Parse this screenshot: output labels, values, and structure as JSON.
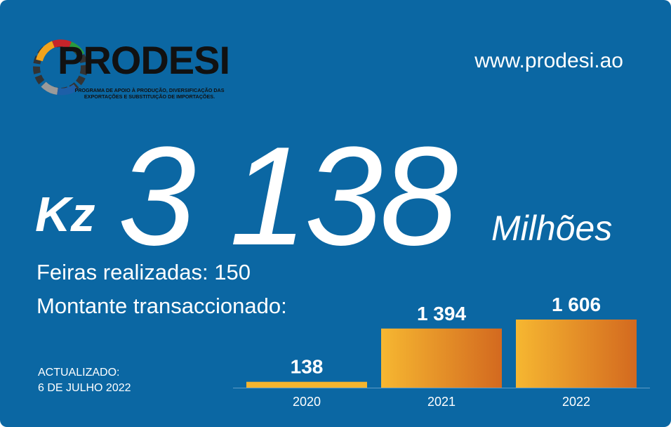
{
  "brand": {
    "name": "PRODESI",
    "subtitle_line1": "PROGRAMA DE APOIO À PRODUÇÃO, DIVERSIFICAÇÃO DAS",
    "subtitle_line2": "EXPORTAÇÕES E SUBSTITUIÇÃO DE IMPORTAÇÕES.",
    "website": "www.prodesi.ao"
  },
  "headline": {
    "currency": "Kz",
    "amount": "3 138",
    "unit": "Milhões"
  },
  "stats": {
    "fairs": "Feiras realizadas: 150",
    "amount_label": "Montante transaccionado:"
  },
  "updated": {
    "label": "ACTUALIZADO:",
    "date": "6 DE JULHO 2022"
  },
  "colors": {
    "background": "#0b67a3",
    "bar_light": "#f6b731",
    "bar_dark": "#d3691f"
  },
  "chart_data": {
    "type": "bar",
    "categories": [
      "2020",
      "2021",
      "2022"
    ],
    "values": [
      138,
      1394,
      1606
    ],
    "value_labels": [
      "138",
      "1 394",
      "1 606"
    ],
    "title": "",
    "xlabel": "",
    "ylabel": "",
    "ylim": [
      0,
      1606
    ],
    "grid": false
  }
}
